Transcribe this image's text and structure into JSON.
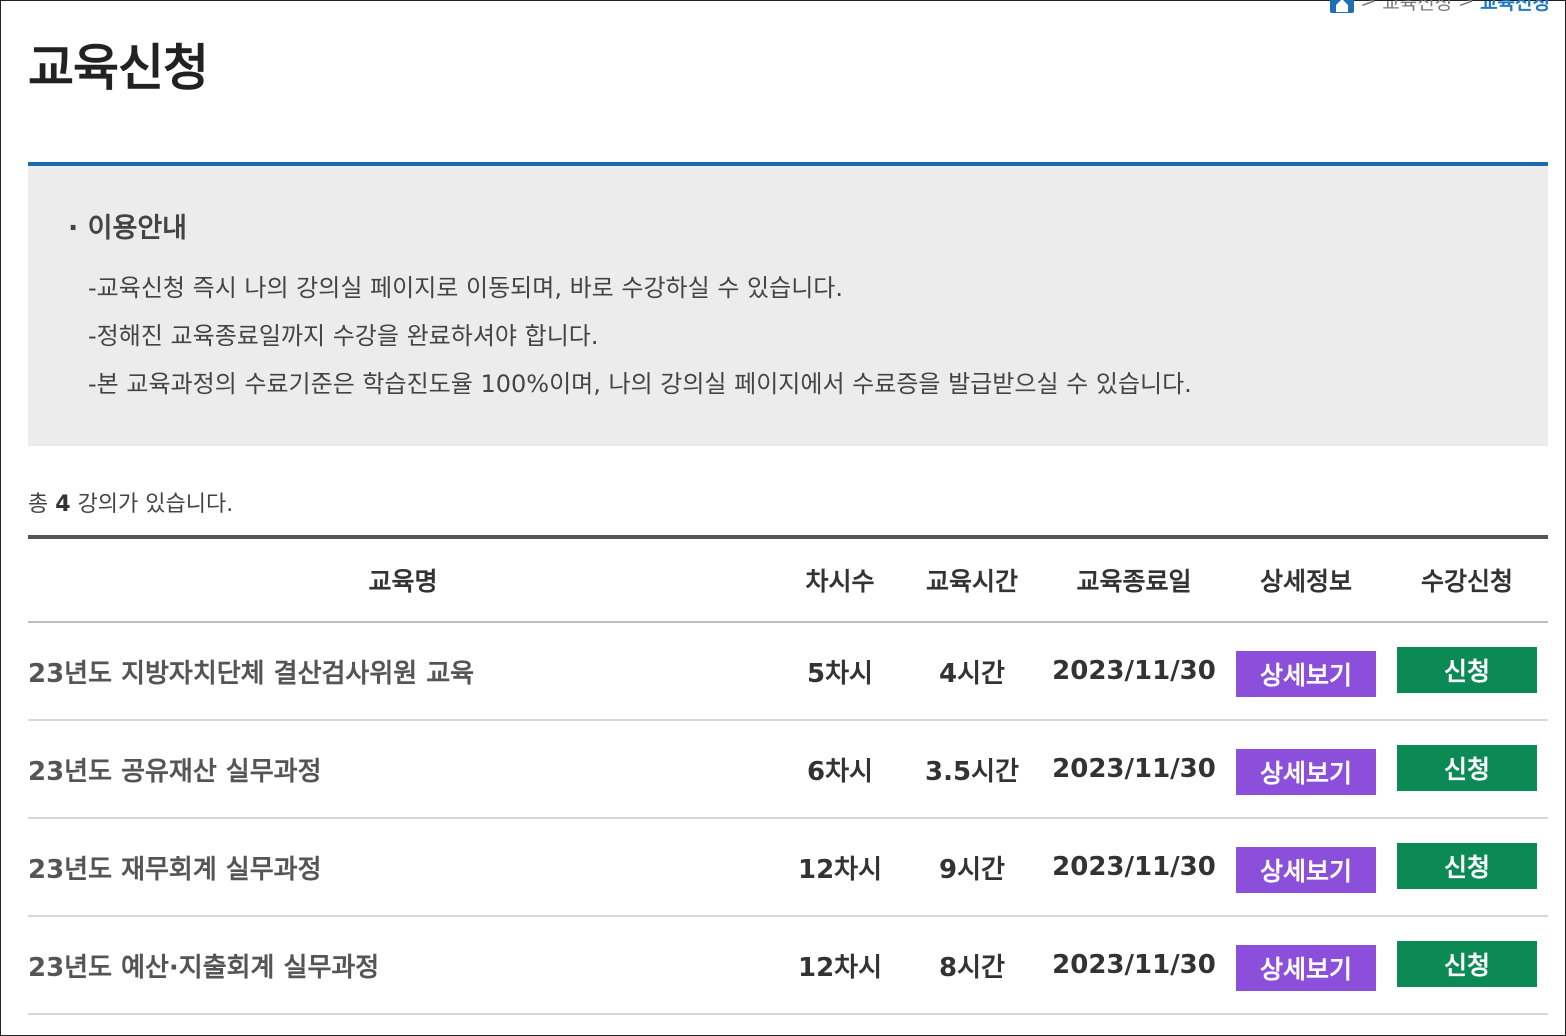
{
  "breadcrumb": {
    "home_icon": "home-icon",
    "sep1": ">",
    "parent": "교육신청",
    "sep2": ">",
    "current": "교육신청"
  },
  "page": {
    "title": "교육신청",
    "accent_color": "#1d6aa8"
  },
  "info": {
    "title": "· 이용안내",
    "lines": [
      "-교육신청 즉시 나의 강의실 페이지로 이동되며, 바로 수강하실 수 있습니다.",
      "-정해진 교육종료일까지 수강을 완료하셔야 합니다.",
      "-본 교육과정의 수료기준은 학습진도율 100%이며, 나의 강의실 페이지에서 수료증을 발급받으실 수 있습니다."
    ]
  },
  "summary": {
    "prefix": "총",
    "count": "4",
    "suffix": "강의가 있습니다."
  },
  "table": {
    "headers": [
      "교육명",
      "차시수",
      "교육시간",
      "교육종료일",
      "상세정보",
      "수강신청"
    ],
    "rows": [
      {
        "name": "23년도 지방자치단체 결산검사위원 교육",
        "sessions": "5차시",
        "hours": "4시간",
        "end_date": "2023/11/30",
        "detail_label": "상세보기",
        "apply_label": "신청"
      },
      {
        "name": "23년도 공유재산 실무과정",
        "sessions": "6차시",
        "hours": "3.5시간",
        "end_date": "2023/11/30",
        "detail_label": "상세보기",
        "apply_label": "신청"
      },
      {
        "name": "23년도 재무회계 실무과정",
        "sessions": "12차시",
        "hours": "9시간",
        "end_date": "2023/11/30",
        "detail_label": "상세보기",
        "apply_label": "신청"
      },
      {
        "name": "23년도 예산·지출회계 실무과정",
        "sessions": "12차시",
        "hours": "8시간",
        "end_date": "2023/11/30",
        "detail_label": "상세보기",
        "apply_label": "신청"
      }
    ]
  },
  "colors": {
    "detail_button": "#8b4fdc",
    "apply_button": "#0b8a55"
  }
}
